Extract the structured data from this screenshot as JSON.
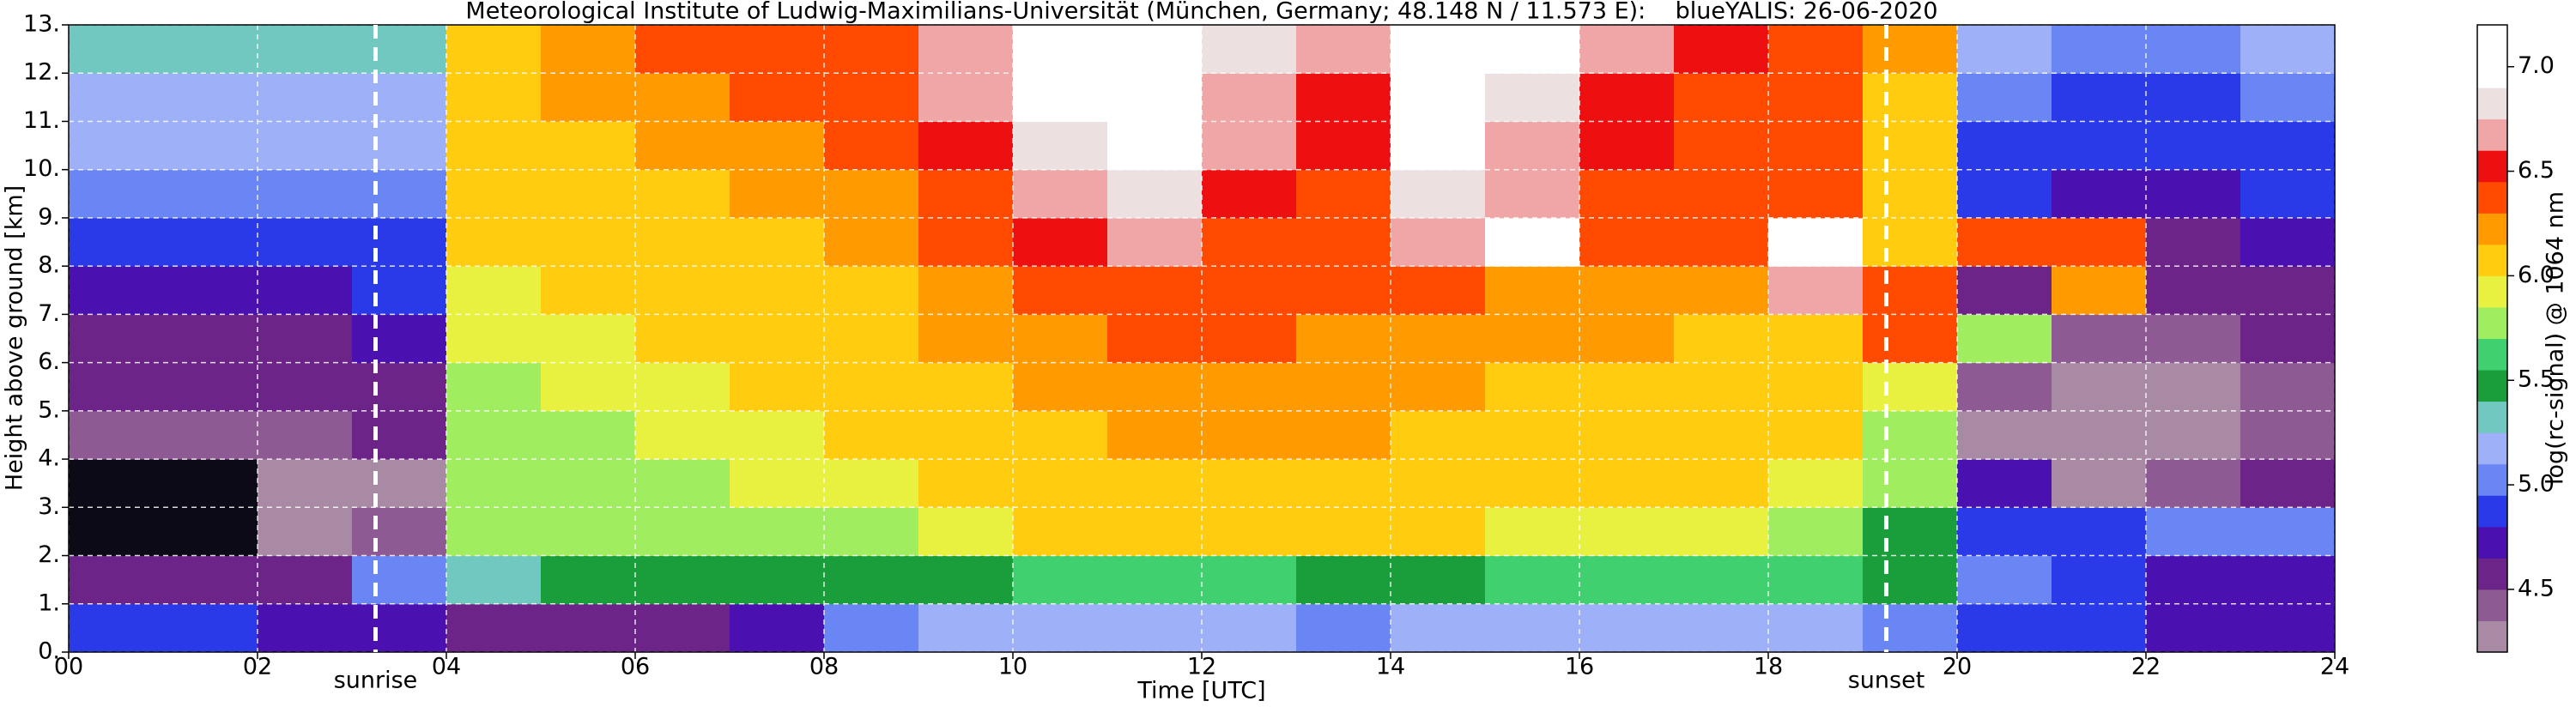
{
  "chart_data": {
    "type": "heatmap",
    "title": "Meteorological Institute of Ludwig-Maximilians-Universität (München, Germany; 48.148 N / 11.573 E):    blueYALIS: 26-06-2020",
    "x_label": "Time [UTC]",
    "y_label": "Height above ground [km]",
    "colorbar_label": "log(rc-signal) @ 1064 nm",
    "xlim": [
      0,
      24
    ],
    "xticks": [
      {
        "value": 0,
        "label": "00"
      },
      {
        "value": 2,
        "label": "02"
      },
      {
        "value": 4,
        "label": "04"
      },
      {
        "value": 6,
        "label": "06"
      },
      {
        "value": 8,
        "label": "08"
      },
      10,
      12,
      14,
      16,
      18,
      20,
      22,
      24
    ],
    "ylim": [
      0,
      13
    ],
    "yticks": [
      {
        "value": 0,
        "label": "0."
      },
      {
        "value": 1,
        "label": "1."
      },
      {
        "value": 2,
        "label": "2."
      },
      {
        "value": 3,
        "label": "3."
      },
      {
        "value": 4,
        "label": "4."
      },
      {
        "value": 5,
        "label": "5."
      },
      {
        "value": 6,
        "label": "6."
      },
      {
        "value": 7,
        "label": "7."
      },
      {
        "value": 8,
        "label": "8."
      },
      {
        "value": 9,
        "label": "9."
      },
      {
        "value": 10,
        "label": "10."
      },
      {
        "value": 11,
        "label": "11."
      },
      {
        "value": 12,
        "label": "12."
      },
      {
        "value": 13,
        "label": "13."
      }
    ],
    "grid": true,
    "clim": [
      4.2,
      7.2
    ],
    "cticks": [
      4.5,
      {
        "value": 5,
        "label": "5.0"
      },
      5.5,
      {
        "value": 6,
        "label": "6.0"
      },
      6.5,
      {
        "value": 7,
        "label": "7.0"
      }
    ],
    "colorscale": [
      [
        4.2,
        "#a88aa4"
      ],
      [
        4.35,
        "#8e5a94"
      ],
      [
        4.5,
        "#6c2488"
      ],
      [
        4.65,
        "#4a10b0"
      ],
      [
        4.8,
        "#2a3ae8"
      ],
      [
        4.95,
        "#6a86f4"
      ],
      [
        5.1,
        "#9eb0f8"
      ],
      [
        5.25,
        "#70c8c0"
      ],
      [
        5.4,
        "#1a9e3c"
      ],
      [
        5.55,
        "#40d070"
      ],
      [
        5.7,
        "#a0ee60"
      ],
      [
        5.85,
        "#e8f040"
      ],
      [
        6.0,
        "#ffcc10"
      ],
      [
        6.15,
        "#ff9a00"
      ],
      [
        6.3,
        "#ff4a00"
      ],
      [
        6.45,
        "#ee1010"
      ],
      [
        6.6,
        "#f0a6a6"
      ],
      [
        6.75,
        "#ece0e0"
      ],
      [
        6.9,
        "#ffffff"
      ]
    ],
    "under_color": "#0b0a16",
    "xbins": [
      0,
      1,
      2,
      3,
      4,
      5,
      6,
      7,
      8,
      9,
      10,
      11,
      12,
      13,
      14,
      15,
      16,
      17,
      18,
      19,
      20,
      21,
      22,
      23,
      24
    ],
    "ybins": [
      0,
      1,
      2,
      3,
      4,
      5,
      6,
      7,
      8,
      9,
      10,
      11,
      12,
      13
    ],
    "z": [
      [
        4.8,
        4.8,
        4.7,
        4.7,
        4.6,
        4.6,
        4.6,
        4.7,
        5.0,
        5.1,
        5.1,
        5.1,
        5.1,
        5.0,
        5.1,
        5.1,
        5.1,
        5.2,
        5.2,
        5.0,
        4.9,
        4.8,
        4.7,
        4.7
      ],
      [
        4.6,
        4.6,
        4.6,
        5.0,
        5.3,
        5.4,
        5.4,
        5.4,
        5.5,
        5.5,
        5.6,
        5.6,
        5.6,
        5.4,
        5.5,
        5.6,
        5.6,
        5.6,
        5.6,
        5.4,
        5.0,
        4.9,
        4.7,
        4.7
      ],
      [
        4.1,
        4.1,
        4.3,
        4.4,
        5.7,
        5.7,
        5.7,
        5.8,
        5.8,
        5.9,
        6.0,
        6.0,
        6.0,
        6.0,
        6.0,
        5.9,
        5.9,
        5.9,
        5.8,
        5.5,
        4.9,
        4.9,
        5.0,
        5.0
      ],
      [
        4.1,
        4.1,
        4.2,
        4.2,
        5.8,
        5.8,
        5.8,
        5.9,
        5.9,
        6.0,
        6.1,
        6.1,
        6.1,
        6.1,
        6.1,
        6.0,
        6.0,
        6.0,
        5.9,
        5.7,
        4.7,
        4.3,
        4.4,
        4.5
      ],
      [
        4.4,
        4.4,
        4.4,
        4.5,
        5.8,
        5.8,
        5.9,
        5.9,
        6.0,
        6.1,
        6.1,
        6.2,
        6.2,
        6.2,
        6.1,
        6.1,
        6.1,
        6.0,
        6.0,
        5.8,
        4.3,
        4.3,
        4.3,
        4.4
      ],
      [
        4.5,
        4.5,
        4.5,
        4.6,
        5.8,
        5.9,
        5.9,
        6.0,
        6.0,
        6.1,
        6.2,
        6.2,
        6.2,
        6.2,
        6.2,
        6.1,
        6.1,
        6.1,
        6.0,
        5.9,
        4.4,
        4.3,
        4.3,
        4.4
      ],
      [
        4.6,
        4.6,
        4.6,
        4.7,
        5.9,
        5.9,
        6.0,
        6.0,
        6.1,
        6.2,
        6.2,
        6.3,
        6.3,
        6.2,
        6.2,
        6.2,
        6.2,
        6.1,
        6.1,
        6.3,
        5.8,
        4.4,
        4.4,
        4.5
      ],
      [
        4.7,
        4.7,
        4.7,
        4.8,
        5.9,
        6.0,
        6.0,
        6.1,
        6.1,
        6.2,
        6.3,
        6.4,
        6.3,
        6.3,
        6.3,
        6.2,
        6.2,
        6.2,
        6.6,
        6.4,
        4.6,
        6.2,
        4.5,
        4.6
      ],
      [
        4.8,
        4.8,
        4.8,
        4.9,
        6.0,
        6.0,
        6.1,
        6.1,
        6.2,
        6.3,
        6.5,
        6.7,
        6.4,
        6.3,
        6.6,
        7.0,
        6.3,
        6.3,
        6.9,
        6.0,
        6.4,
        6.3,
        4.6,
        4.7
      ],
      [
        5.0,
        5.0,
        5.0,
        5.0,
        6.0,
        6.1,
        6.1,
        6.2,
        6.2,
        6.4,
        6.6,
        6.8,
        6.5,
        6.4,
        6.8,
        6.6,
        6.4,
        6.4,
        6.3,
        6.0,
        4.8,
        4.7,
        4.7,
        4.8
      ],
      [
        5.1,
        5.1,
        5.1,
        5.1,
        6.1,
        6.1,
        6.2,
        6.2,
        6.3,
        6.5,
        6.8,
        6.9,
        6.6,
        6.5,
        6.9,
        6.7,
        6.5,
        6.4,
        6.3,
        6.1,
        4.9,
        4.8,
        4.8,
        4.9
      ],
      [
        5.2,
        5.2,
        5.2,
        5.2,
        6.1,
        6.2,
        6.2,
        6.3,
        6.3,
        6.6,
        6.9,
        7.0,
        6.7,
        6.5,
        7.0,
        6.8,
        6.5,
        6.4,
        6.3,
        6.1,
        5.0,
        4.9,
        4.9,
        5.0
      ],
      [
        5.3,
        5.3,
        5.3,
        5.3,
        6.1,
        6.2,
        6.3,
        6.3,
        6.4,
        6.7,
        7.0,
        7.1,
        6.8,
        6.6,
        7.1,
        6.9,
        6.6,
        6.5,
        6.4,
        6.2,
        5.1,
        5.0,
        5.0,
        5.1
      ]
    ],
    "annotations": [
      {
        "x": 3.25,
        "text": "sunrise"
      },
      {
        "x": 19.25,
        "text": "sunset"
      }
    ]
  }
}
